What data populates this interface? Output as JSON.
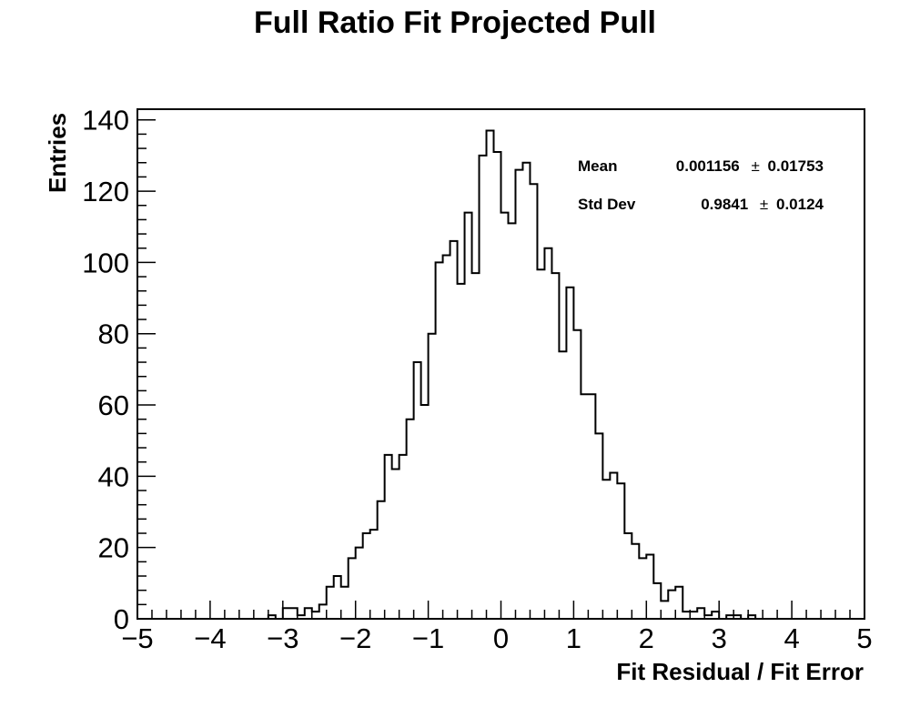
{
  "chart_data": {
    "type": "histogram",
    "title": "Full Ratio Fit Projected Pull",
    "xlabel": "Fit Residual / Fit Error",
    "ylabel": "Entries",
    "xlim": [
      -5,
      5
    ],
    "ylim": [
      0,
      143
    ],
    "bin_width": 0.1,
    "bin_low_edges": [
      -5.0,
      -4.9,
      -4.8,
      -4.7,
      -4.6,
      -4.5,
      -4.4,
      -4.3,
      -4.2,
      -4.1,
      -4.0,
      -3.9,
      -3.8,
      -3.7,
      -3.6,
      -3.5,
      -3.4,
      -3.3,
      -3.2,
      -3.1,
      -3.0,
      -2.9,
      -2.8,
      -2.7,
      -2.6,
      -2.5,
      -2.4,
      -2.3,
      -2.2,
      -2.1,
      -2.0,
      -1.9,
      -1.8,
      -1.7,
      -1.6,
      -1.5,
      -1.4,
      -1.3,
      -1.2,
      -1.1,
      -1.0,
      -0.9,
      -0.8,
      -0.7,
      -0.6,
      -0.5,
      -0.4,
      -0.3,
      -0.2,
      -0.1,
      0.0,
      0.1,
      0.2,
      0.3,
      0.4,
      0.5,
      0.6,
      0.7,
      0.8,
      0.9,
      1.0,
      1.1,
      1.2,
      1.3,
      1.4,
      1.5,
      1.6,
      1.7,
      1.8,
      1.9,
      2.0,
      2.1,
      2.2,
      2.3,
      2.4,
      2.5,
      2.6,
      2.7,
      2.8,
      2.9,
      3.0,
      3.1,
      3.2,
      3.3,
      3.4,
      3.5,
      3.6,
      3.7,
      3.8,
      3.9,
      4.0,
      4.1,
      4.2,
      4.3,
      4.4,
      4.5,
      4.6,
      4.7,
      4.8,
      4.9
    ],
    "values": [
      0,
      0,
      0,
      0,
      0,
      0,
      0,
      0,
      0,
      0,
      0,
      0,
      0,
      0,
      0,
      0,
      0,
      0,
      1,
      0,
      3,
      3,
      1,
      3,
      2,
      4,
      9,
      12,
      9,
      17,
      20,
      24,
      25,
      33,
      46,
      42,
      46,
      56,
      72,
      60,
      80,
      100,
      102,
      106,
      94,
      114,
      97,
      130,
      137,
      131,
      114,
      111,
      126,
      128,
      122,
      98,
      104,
      97,
      75,
      93,
      81,
      63,
      63,
      52,
      39,
      41,
      38,
      24,
      21,
      17,
      18,
      10,
      5,
      8,
      9,
      2,
      2,
      3,
      1,
      2,
      0,
      1,
      1,
      0,
      1,
      0,
      0,
      0,
      0,
      0,
      0,
      0,
      0,
      0,
      0,
      0,
      0,
      0,
      0,
      0
    ],
    "x_ticks": [
      "−5",
      "−4",
      "−3",
      "−2",
      "−1",
      "0",
      "1",
      "2",
      "3",
      "4",
      "5"
    ],
    "y_ticks": [
      "0",
      "20",
      "40",
      "60",
      "80",
      "100",
      "120",
      "140"
    ],
    "grid": false,
    "legend": "none",
    "line_color": "#000000"
  },
  "stats_box": {
    "mean_label": "Mean",
    "mean_value": "0.001156",
    "mean_error": "0.01753",
    "stddev_label": "Std Dev",
    "stddev_value": "0.9841",
    "stddev_error": "0.0124",
    "pm_symbol": "±"
  }
}
